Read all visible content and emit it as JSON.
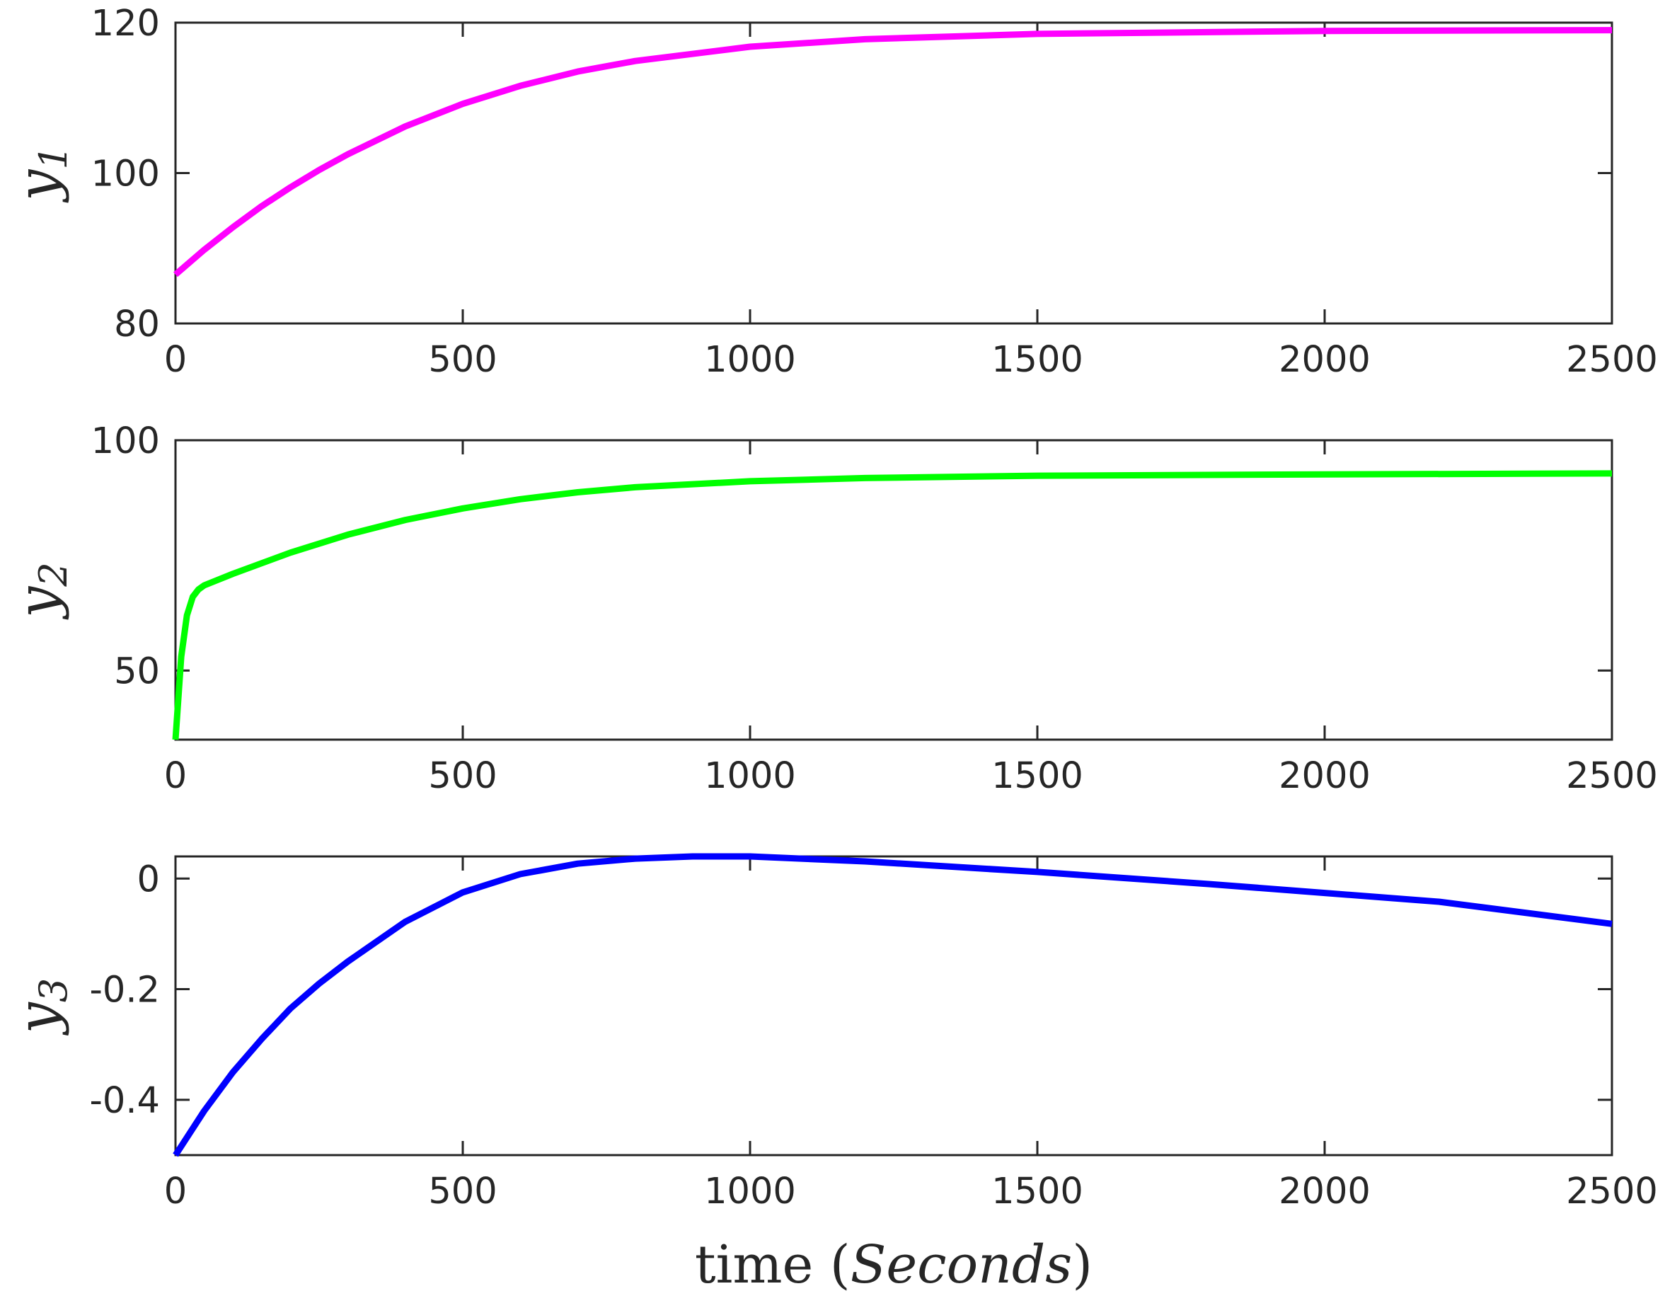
{
  "chart_data": [
    {
      "type": "line",
      "ylabel": "y",
      "ylabel_subscript": "1",
      "xlim": [
        0,
        2500
      ],
      "ylim": [
        80,
        120
      ],
      "xticks": [
        0,
        500,
        1000,
        1500,
        2000,
        2500
      ],
      "yticks": [
        80,
        100,
        120
      ],
      "grid": false,
      "color": "#ff00ff",
      "series": [
        {
          "x": [
            0,
            50,
            100,
            150,
            200,
            250,
            300,
            400,
            500,
            600,
            700,
            800,
            1000,
            1200,
            1500,
            2000,
            2500
          ],
          "values": [
            86.5,
            89.8,
            92.8,
            95.6,
            98.1,
            100.4,
            102.5,
            106.2,
            109.2,
            111.6,
            113.5,
            114.9,
            116.8,
            117.8,
            118.5,
            118.9,
            119.0
          ]
        }
      ]
    },
    {
      "type": "line",
      "ylabel": "y",
      "ylabel_subscript": "2",
      "xlim": [
        0,
        2500
      ],
      "ylim": [
        35,
        100
      ],
      "xticks": [
        0,
        500,
        1000,
        1500,
        2000,
        2500
      ],
      "yticks": [
        50,
        100
      ],
      "grid": false,
      "color": "#00ff00",
      "series": [
        {
          "x": [
            0,
            10,
            20,
            30,
            40,
            50,
            100,
            200,
            300,
            400,
            500,
            600,
            700,
            800,
            1000,
            1200,
            1500,
            2000,
            2500
          ],
          "values": [
            35,
            53,
            62,
            66,
            67.6,
            68.5,
            71,
            75.6,
            79.5,
            82.7,
            85.2,
            87.2,
            88.7,
            89.8,
            91.1,
            91.8,
            92.3,
            92.6,
            92.8
          ]
        }
      ]
    },
    {
      "type": "line",
      "ylabel": "y",
      "ylabel_subscript": "3",
      "xlabel_prefix": "time (",
      "xlabel_italic": "Seconds",
      "xlabel_suffix": ")",
      "xlim": [
        0,
        2500
      ],
      "ylim": [
        -0.5,
        0.04
      ],
      "xticks": [
        0,
        500,
        1000,
        1500,
        2000,
        2500
      ],
      "yticks": [
        -0.4,
        -0.2,
        0
      ],
      "ytick_labels": [
        "-0.4",
        "-0.2",
        "0"
      ],
      "grid": false,
      "color": "#0000ff",
      "series": [
        {
          "x": [
            0,
            50,
            100,
            150,
            200,
            250,
            300,
            400,
            500,
            600,
            700,
            800,
            900,
            1000,
            1200,
            1500,
            1800,
            2000,
            2200,
            2500
          ],
          "values": [
            -0.5,
            -0.42,
            -0.35,
            -0.29,
            -0.235,
            -0.19,
            -0.15,
            -0.078,
            -0.025,
            0.008,
            0.027,
            0.036,
            0.04,
            0.04,
            0.031,
            0.012,
            -0.01,
            -0.026,
            -0.042,
            -0.082
          ]
        }
      ]
    }
  ]
}
